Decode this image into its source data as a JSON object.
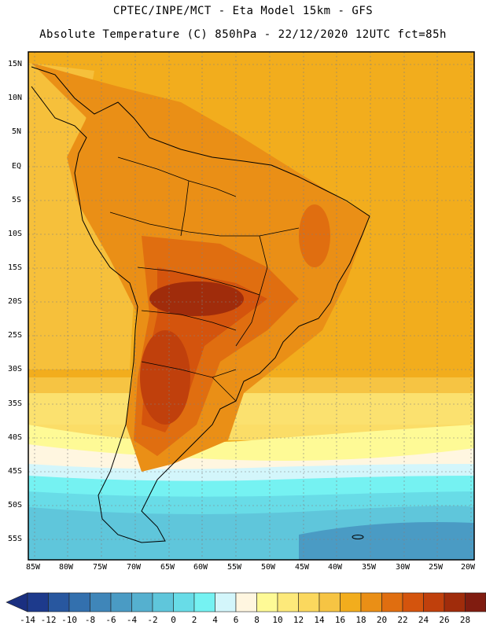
{
  "header": {
    "line1": "CPTEC/INPE/MCT -  Eta Model 15km - GFS",
    "line2": "Absolute Temperature (C) 850hPa - 22/12/2020 12UTC fct=85h"
  },
  "axes": {
    "lat_labels": [
      "15N",
      "10N",
      "5N",
      "EQ",
      "5S",
      "10S",
      "15S",
      "20S",
      "25S",
      "30S",
      "35S",
      "40S",
      "45S",
      "50S",
      "55S"
    ],
    "lon_labels": [
      "85W",
      "80W",
      "75W",
      "70W",
      "65W",
      "60W",
      "55W",
      "50W",
      "45W",
      "40W",
      "35W",
      "30W",
      "25W",
      "20W"
    ]
  },
  "colorbar": {
    "labels": [
      "-14",
      "-12",
      "-10",
      "-8",
      "-6",
      "-4",
      "-2",
      "0",
      "2",
      "4",
      "6",
      "8",
      "10",
      "12",
      "14",
      "16",
      "18",
      "20",
      "22",
      "24",
      "26",
      "28"
    ],
    "colors": [
      "#1d3a8c",
      "#28579f",
      "#3370ae",
      "#3f86b9",
      "#4a9bc4",
      "#55b0cf",
      "#5fc6db",
      "#68dce7",
      "#75f2f2",
      "#d3f6fb",
      "#fff6e0",
      "#fefa96",
      "#fde97a",
      "#fbd85e",
      "#f6c443",
      "#f2ad1d",
      "#ea8f16",
      "#e06e10",
      "#d4540d",
      "#c0400c",
      "#a02c0b",
      "#801c10"
    ],
    "min_color": "#1a2f80",
    "max_color": "#6e0f18"
  }
}
